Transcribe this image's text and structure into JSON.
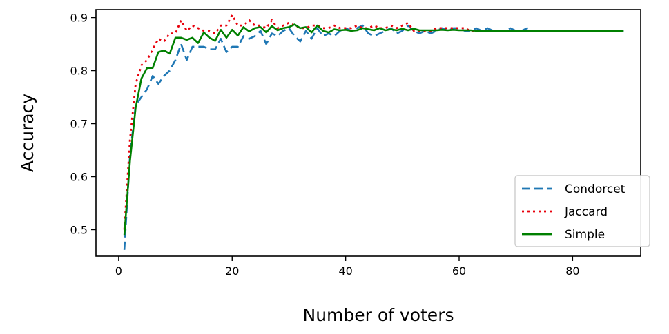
{
  "chart_data": {
    "type": "line",
    "title": "",
    "xlabel": "Number of voters",
    "ylabel": "Accuracy",
    "xlim": [
      -4,
      92
    ],
    "ylim": [
      0.45,
      0.915
    ],
    "xticks": [
      0,
      20,
      40,
      60,
      80
    ],
    "yticks": [
      0.5,
      0.6,
      0.7,
      0.8,
      0.9
    ],
    "xtick_labels": [
      "0",
      "20",
      "40",
      "60",
      "80"
    ],
    "ytick_labels": [
      "0.5",
      "0.6",
      "0.7",
      "0.8",
      "0.9"
    ],
    "grid": false,
    "legend_position": "lower-right",
    "series": [
      {
        "name": "Condorcet",
        "color": "#1f77b4",
        "dash": "dashed",
        "x": [
          1,
          2,
          3,
          4,
          5,
          6,
          7,
          8,
          9,
          10,
          11,
          12,
          13,
          14,
          15,
          16,
          17,
          18,
          19,
          20,
          21,
          22,
          23,
          24,
          25,
          26,
          27,
          28,
          29,
          30,
          31,
          32,
          33,
          34,
          35,
          36,
          37,
          38,
          39,
          40,
          41,
          42,
          43,
          44,
          45,
          46,
          47,
          48,
          49,
          50,
          51,
          52,
          53,
          54,
          55,
          56,
          57,
          58,
          59,
          60,
          61,
          62,
          63,
          64,
          65,
          66,
          67,
          68,
          69,
          70,
          71,
          72,
          73,
          74,
          75,
          76,
          77,
          78,
          79,
          80,
          81,
          82,
          83,
          84,
          85,
          86,
          87,
          88,
          89
        ],
        "y": [
          0.462,
          0.64,
          0.735,
          0.75,
          0.765,
          0.79,
          0.775,
          0.79,
          0.8,
          0.82,
          0.85,
          0.82,
          0.845,
          0.845,
          0.845,
          0.84,
          0.84,
          0.86,
          0.835,
          0.845,
          0.845,
          0.865,
          0.86,
          0.865,
          0.875,
          0.85,
          0.87,
          0.865,
          0.875,
          0.88,
          0.865,
          0.855,
          0.875,
          0.86,
          0.88,
          0.865,
          0.87,
          0.865,
          0.875,
          0.88,
          0.875,
          0.88,
          0.885,
          0.87,
          0.865,
          0.87,
          0.875,
          0.88,
          0.87,
          0.875,
          0.885,
          0.875,
          0.87,
          0.875,
          0.87,
          0.875,
          0.88,
          0.875,
          0.88,
          0.88,
          0.875,
          0.875,
          0.88,
          0.875,
          0.88,
          0.875,
          0.875,
          0.875,
          0.88,
          0.875,
          0.875,
          0.88,
          0.875,
          0.875,
          0.875,
          0.875,
          0.875,
          0.875,
          0.875,
          0.875,
          0.875,
          0.875,
          0.875,
          0.875,
          0.875,
          0.875,
          0.875,
          0.875,
          0.875
        ]
      },
      {
        "name": "Jaccard",
        "color": "#e8000b",
        "dash": "dotted",
        "x": [
          1,
          2,
          3,
          4,
          5,
          6,
          7,
          8,
          9,
          10,
          11,
          12,
          13,
          14,
          15,
          16,
          17,
          18,
          19,
          20,
          21,
          22,
          23,
          24,
          25,
          26,
          27,
          28,
          29,
          30,
          31,
          32,
          33,
          34,
          35,
          36,
          37,
          38,
          39,
          40,
          41,
          42,
          43,
          44,
          45,
          46,
          47,
          48,
          49,
          50,
          51,
          52,
          53,
          54,
          55,
          56,
          57,
          58,
          59,
          60,
          61,
          62,
          63,
          64,
          65,
          66,
          67,
          68,
          69,
          70,
          71,
          72,
          73,
          74,
          75,
          76,
          77,
          78,
          79,
          80,
          81,
          82,
          83,
          84,
          85,
          86,
          87,
          88,
          89
        ],
        "y": [
          0.5,
          0.67,
          0.775,
          0.81,
          0.82,
          0.84,
          0.86,
          0.855,
          0.87,
          0.87,
          0.895,
          0.875,
          0.885,
          0.88,
          0.875,
          0.875,
          0.87,
          0.885,
          0.885,
          0.905,
          0.885,
          0.885,
          0.895,
          0.885,
          0.885,
          0.88,
          0.895,
          0.88,
          0.885,
          0.89,
          0.885,
          0.88,
          0.88,
          0.885,
          0.885,
          0.88,
          0.88,
          0.885,
          0.88,
          0.88,
          0.88,
          0.885,
          0.88,
          0.88,
          0.885,
          0.88,
          0.88,
          0.885,
          0.88,
          0.885,
          0.89,
          0.875,
          0.875,
          0.875,
          0.875,
          0.88,
          0.88,
          0.88,
          0.88,
          0.88,
          0.88,
          0.875,
          0.875,
          0.875,
          0.875,
          0.875,
          0.875,
          0.875,
          0.875,
          0.875,
          0.875,
          0.875,
          0.875,
          0.875,
          0.875,
          0.875,
          0.875,
          0.875,
          0.875,
          0.875,
          0.875,
          0.875,
          0.875,
          0.875,
          0.875,
          0.875,
          0.875,
          0.875,
          0.875
        ]
      },
      {
        "name": "Simple",
        "color": "#008000",
        "dash": "solid",
        "x": [
          1,
          2,
          3,
          4,
          5,
          6,
          7,
          8,
          9,
          10,
          11,
          12,
          13,
          14,
          15,
          16,
          17,
          18,
          19,
          20,
          21,
          22,
          23,
          24,
          25,
          26,
          27,
          28,
          29,
          30,
          31,
          32,
          33,
          34,
          35,
          36,
          37,
          38,
          39,
          40,
          41,
          42,
          43,
          44,
          45,
          46,
          47,
          48,
          49,
          50,
          51,
          52,
          53,
          54,
          55,
          56,
          57,
          58,
          59,
          60,
          61,
          62,
          63,
          64,
          65,
          66,
          67,
          68,
          69,
          70,
          71,
          72,
          73,
          74,
          75,
          76,
          77,
          78,
          79,
          80,
          81,
          82,
          83,
          84,
          85,
          86,
          87,
          88,
          89
        ],
        "y": [
          0.49,
          0.63,
          0.73,
          0.785,
          0.805,
          0.805,
          0.835,
          0.838,
          0.832,
          0.862,
          0.862,
          0.858,
          0.862,
          0.852,
          0.872,
          0.862,
          0.856,
          0.877,
          0.862,
          0.877,
          0.866,
          0.882,
          0.874,
          0.88,
          0.882,
          0.872,
          0.884,
          0.876,
          0.88,
          0.882,
          0.887,
          0.88,
          0.882,
          0.872,
          0.885,
          0.875,
          0.872,
          0.878,
          0.876,
          0.877,
          0.875,
          0.876,
          0.88,
          0.878,
          0.876,
          0.88,
          0.876,
          0.878,
          0.876,
          0.879,
          0.876,
          0.879,
          0.876,
          0.876,
          0.876,
          0.876,
          0.877,
          0.876,
          0.877,
          0.876,
          0.876,
          0.876,
          0.875,
          0.875,
          0.875,
          0.875,
          0.875,
          0.875,
          0.875,
          0.875,
          0.875,
          0.875,
          0.875,
          0.875,
          0.875,
          0.875,
          0.875,
          0.875,
          0.875,
          0.875,
          0.875,
          0.875,
          0.875,
          0.875,
          0.875,
          0.875,
          0.875,
          0.875,
          0.875
        ]
      }
    ]
  }
}
